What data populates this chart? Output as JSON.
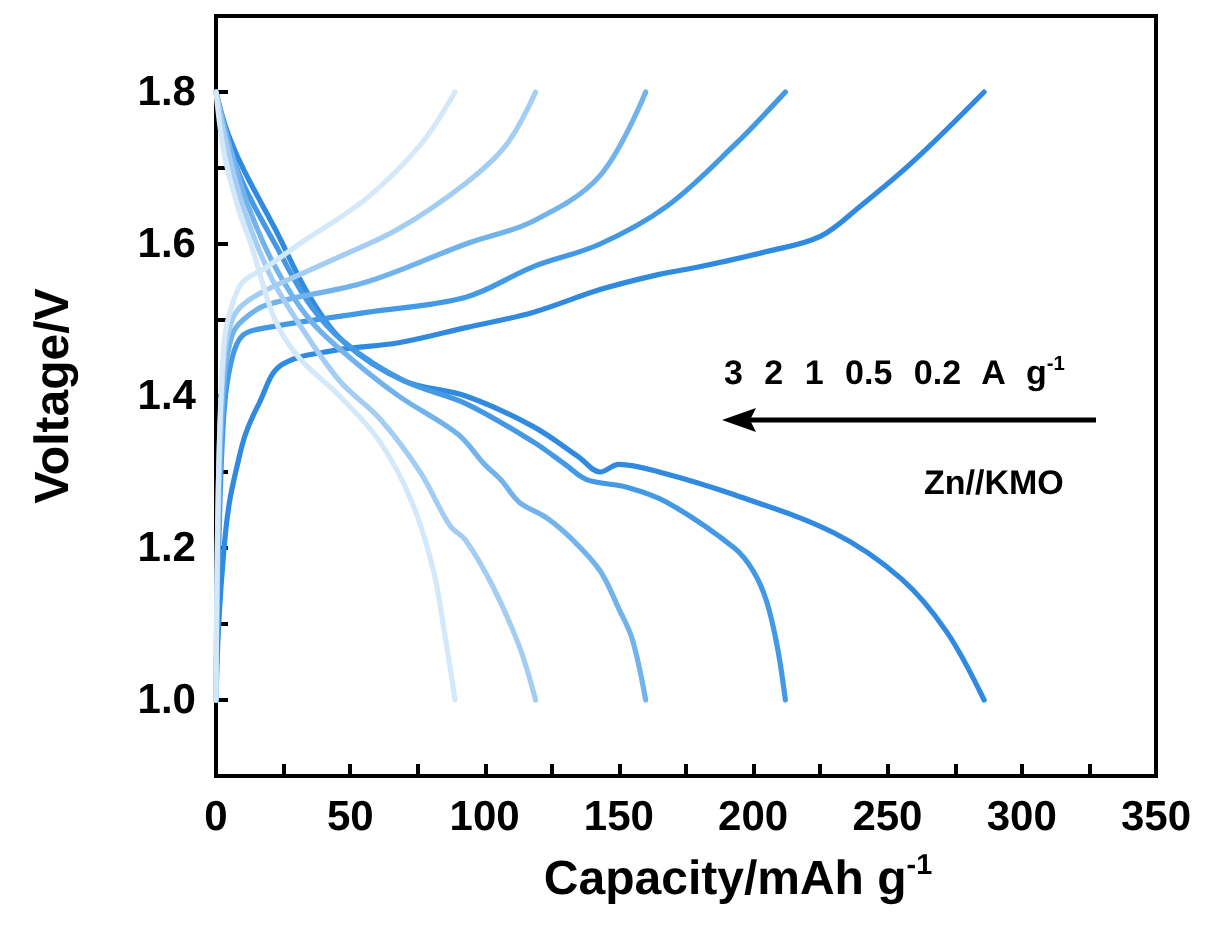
{
  "chart_data": {
    "type": "line",
    "xlabel": "Capacity/mAh g$^{-1}$",
    "ylabel": "Voltage/V",
    "annotations": [
      "3 2 1 0.5 0.2 A g$^{-1}$",
      "Zn//KMO"
    ],
    "xlim": [
      0,
      350
    ],
    "xticks": [
      0,
      {
        "value": 25,
        "label": null
      },
      50,
      {
        "value": 75,
        "label": null
      },
      100,
      {
        "value": 125,
        "label": null
      },
      150,
      {
        "value": 175,
        "label": null
      },
      200,
      {
        "value": 225,
        "label": null
      },
      250,
      {
        "value": 275,
        "label": null
      },
      300,
      {
        "value": 325,
        "label": null
      },
      350
    ],
    "ylim": [
      0.9,
      1.9
    ],
    "yticks": [
      {
        "value": 1,
        "label": "1.0"
      },
      {
        "value": 1.1,
        "label": null
      },
      1.2,
      {
        "value": 1.3,
        "label": null
      },
      1.4,
      {
        "value": 1.5,
        "label": null
      },
      1.6,
      {
        "value": 1.7,
        "label": null
      },
      1.8
    ],
    "grid": false,
    "marker": "none",
    "line_style": "solid",
    "series": [
      {
        "color": "#2f8ae0",
        "x": [
          0,
          1,
          3,
          5,
          8,
          11,
          16,
          24,
          44,
          68,
          93,
          118,
          143,
          165,
          180,
          205,
          225,
          240,
          260,
          286
        ],
        "values": [
          1.0,
          1.1,
          1.2,
          1.26,
          1.31,
          1.35,
          1.39,
          1.44,
          1.46,
          1.47,
          1.49,
          1.51,
          1.54,
          1.56,
          1.57,
          1.59,
          1.61,
          1.65,
          1.71,
          1.8
        ]
      },
      {
        "color": "#2f8ae0",
        "x": [
          0,
          4,
          10,
          22,
          35,
          48,
          70,
          93,
          118,
          135,
          143,
          150,
          165,
          193,
          230,
          255,
          272,
          286
        ],
        "values": [
          1.8,
          1.75,
          1.7,
          1.62,
          1.53,
          1.47,
          1.42,
          1.4,
          1.36,
          1.32,
          1.3,
          1.31,
          1.3,
          1.27,
          1.22,
          1.16,
          1.09,
          1.0
        ]
      },
      {
        "color": "#4499e5",
        "x": [
          0,
          1,
          3,
          6,
          10,
          19,
          56,
          93,
          118,
          143,
          168,
          193,
          212
        ],
        "values": [
          1.0,
          1.2,
          1.38,
          1.45,
          1.48,
          1.49,
          1.51,
          1.53,
          1.57,
          1.6,
          1.65,
          1.73,
          1.8
        ]
      },
      {
        "color": "#4499e5",
        "x": [
          0,
          4,
          10,
          22,
          35,
          48,
          70,
          93,
          118,
          130,
          138,
          153,
          168,
          193,
          200,
          205,
          209,
          212
        ],
        "values": [
          1.8,
          1.74,
          1.68,
          1.6,
          1.52,
          1.47,
          1.42,
          1.39,
          1.34,
          1.31,
          1.29,
          1.28,
          1.26,
          1.2,
          1.17,
          1.13,
          1.07,
          1.0
        ]
      },
      {
        "color": "#72b3ec",
        "x": [
          0,
          1,
          3,
          6,
          10,
          19,
          56,
          93,
          118,
          143,
          160
        ],
        "values": [
          1.0,
          1.25,
          1.42,
          1.48,
          1.5,
          1.52,
          1.55,
          1.6,
          1.63,
          1.69,
          1.8
        ]
      },
      {
        "color": "#72b3ec",
        "x": [
          0,
          5,
          12,
          22,
          35,
          50,
          68,
          90,
          100,
          106,
          113,
          123,
          133,
          143,
          150,
          155,
          160
        ],
        "values": [
          1.8,
          1.73,
          1.65,
          1.57,
          1.5,
          1.45,
          1.4,
          1.35,
          1.31,
          1.29,
          1.26,
          1.24,
          1.21,
          1.17,
          1.12,
          1.08,
          1.0
        ]
      },
      {
        "color": "#a3cdf3",
        "x": [
          0,
          1,
          3,
          6,
          10,
          19,
          44,
          68,
          93,
          108,
          119
        ],
        "values": [
          1.0,
          1.3,
          1.45,
          1.5,
          1.52,
          1.54,
          1.58,
          1.62,
          1.68,
          1.73,
          1.8
        ]
      },
      {
        "color": "#a3cdf3",
        "x": [
          0,
          4,
          10,
          20,
          30,
          46,
          61,
          76,
          87,
          93,
          103,
          113,
          119
        ],
        "values": [
          1.8,
          1.73,
          1.65,
          1.56,
          1.5,
          1.42,
          1.37,
          1.3,
          1.23,
          1.21,
          1.15,
          1.07,
          1.0
        ]
      },
      {
        "color": "#d3e8f9",
        "x": [
          0,
          1,
          3,
          6,
          10,
          19,
          31,
          56,
          76,
          89
        ],
        "values": [
          1.0,
          1.3,
          1.47,
          1.52,
          1.55,
          1.57,
          1.6,
          1.66,
          1.73,
          1.8
        ]
      },
      {
        "color": "#d3e8f9",
        "x": [
          0,
          3,
          8,
          13,
          22,
          31,
          46,
          61,
          73,
          81,
          85,
          89
        ],
        "values": [
          1.8,
          1.72,
          1.65,
          1.6,
          1.5,
          1.45,
          1.4,
          1.34,
          1.26,
          1.17,
          1.09,
          1.0
        ]
      }
    ]
  }
}
